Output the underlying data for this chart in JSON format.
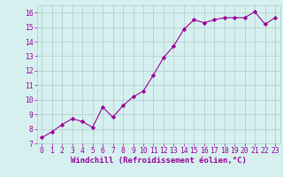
{
  "x": [
    0,
    1,
    2,
    3,
    4,
    5,
    6,
    7,
    8,
    9,
    10,
    11,
    12,
    13,
    14,
    15,
    16,
    17,
    18,
    19,
    20,
    21,
    22,
    23
  ],
  "y": [
    7.4,
    7.8,
    8.3,
    8.7,
    8.5,
    8.1,
    9.5,
    8.8,
    9.6,
    10.2,
    10.6,
    11.7,
    12.9,
    13.7,
    14.85,
    15.5,
    15.3,
    15.5,
    15.65,
    15.65,
    15.65,
    16.05,
    15.2,
    15.65
  ],
  "line_color": "#990099",
  "marker": "D",
  "marker_size": 2.2,
  "bg_color": "#d6f0f0",
  "grid_color": "#b0c8c8",
  "xlabel": "Windchill (Refroidissement éolien,°C)",
  "xlabel_color": "#990099",
  "tick_color": "#990099",
  "xlim": [
    -0.5,
    23.5
  ],
  "ylim": [
    7.0,
    16.5
  ],
  "yticks": [
    7,
    8,
    9,
    10,
    11,
    12,
    13,
    14,
    15,
    16
  ],
  "xticks": [
    0,
    1,
    2,
    3,
    4,
    5,
    6,
    7,
    8,
    9,
    10,
    11,
    12,
    13,
    14,
    15,
    16,
    17,
    18,
    19,
    20,
    21,
    22,
    23
  ],
  "tick_label_fontsize": 5.8,
  "xlabel_fontsize": 6.5
}
